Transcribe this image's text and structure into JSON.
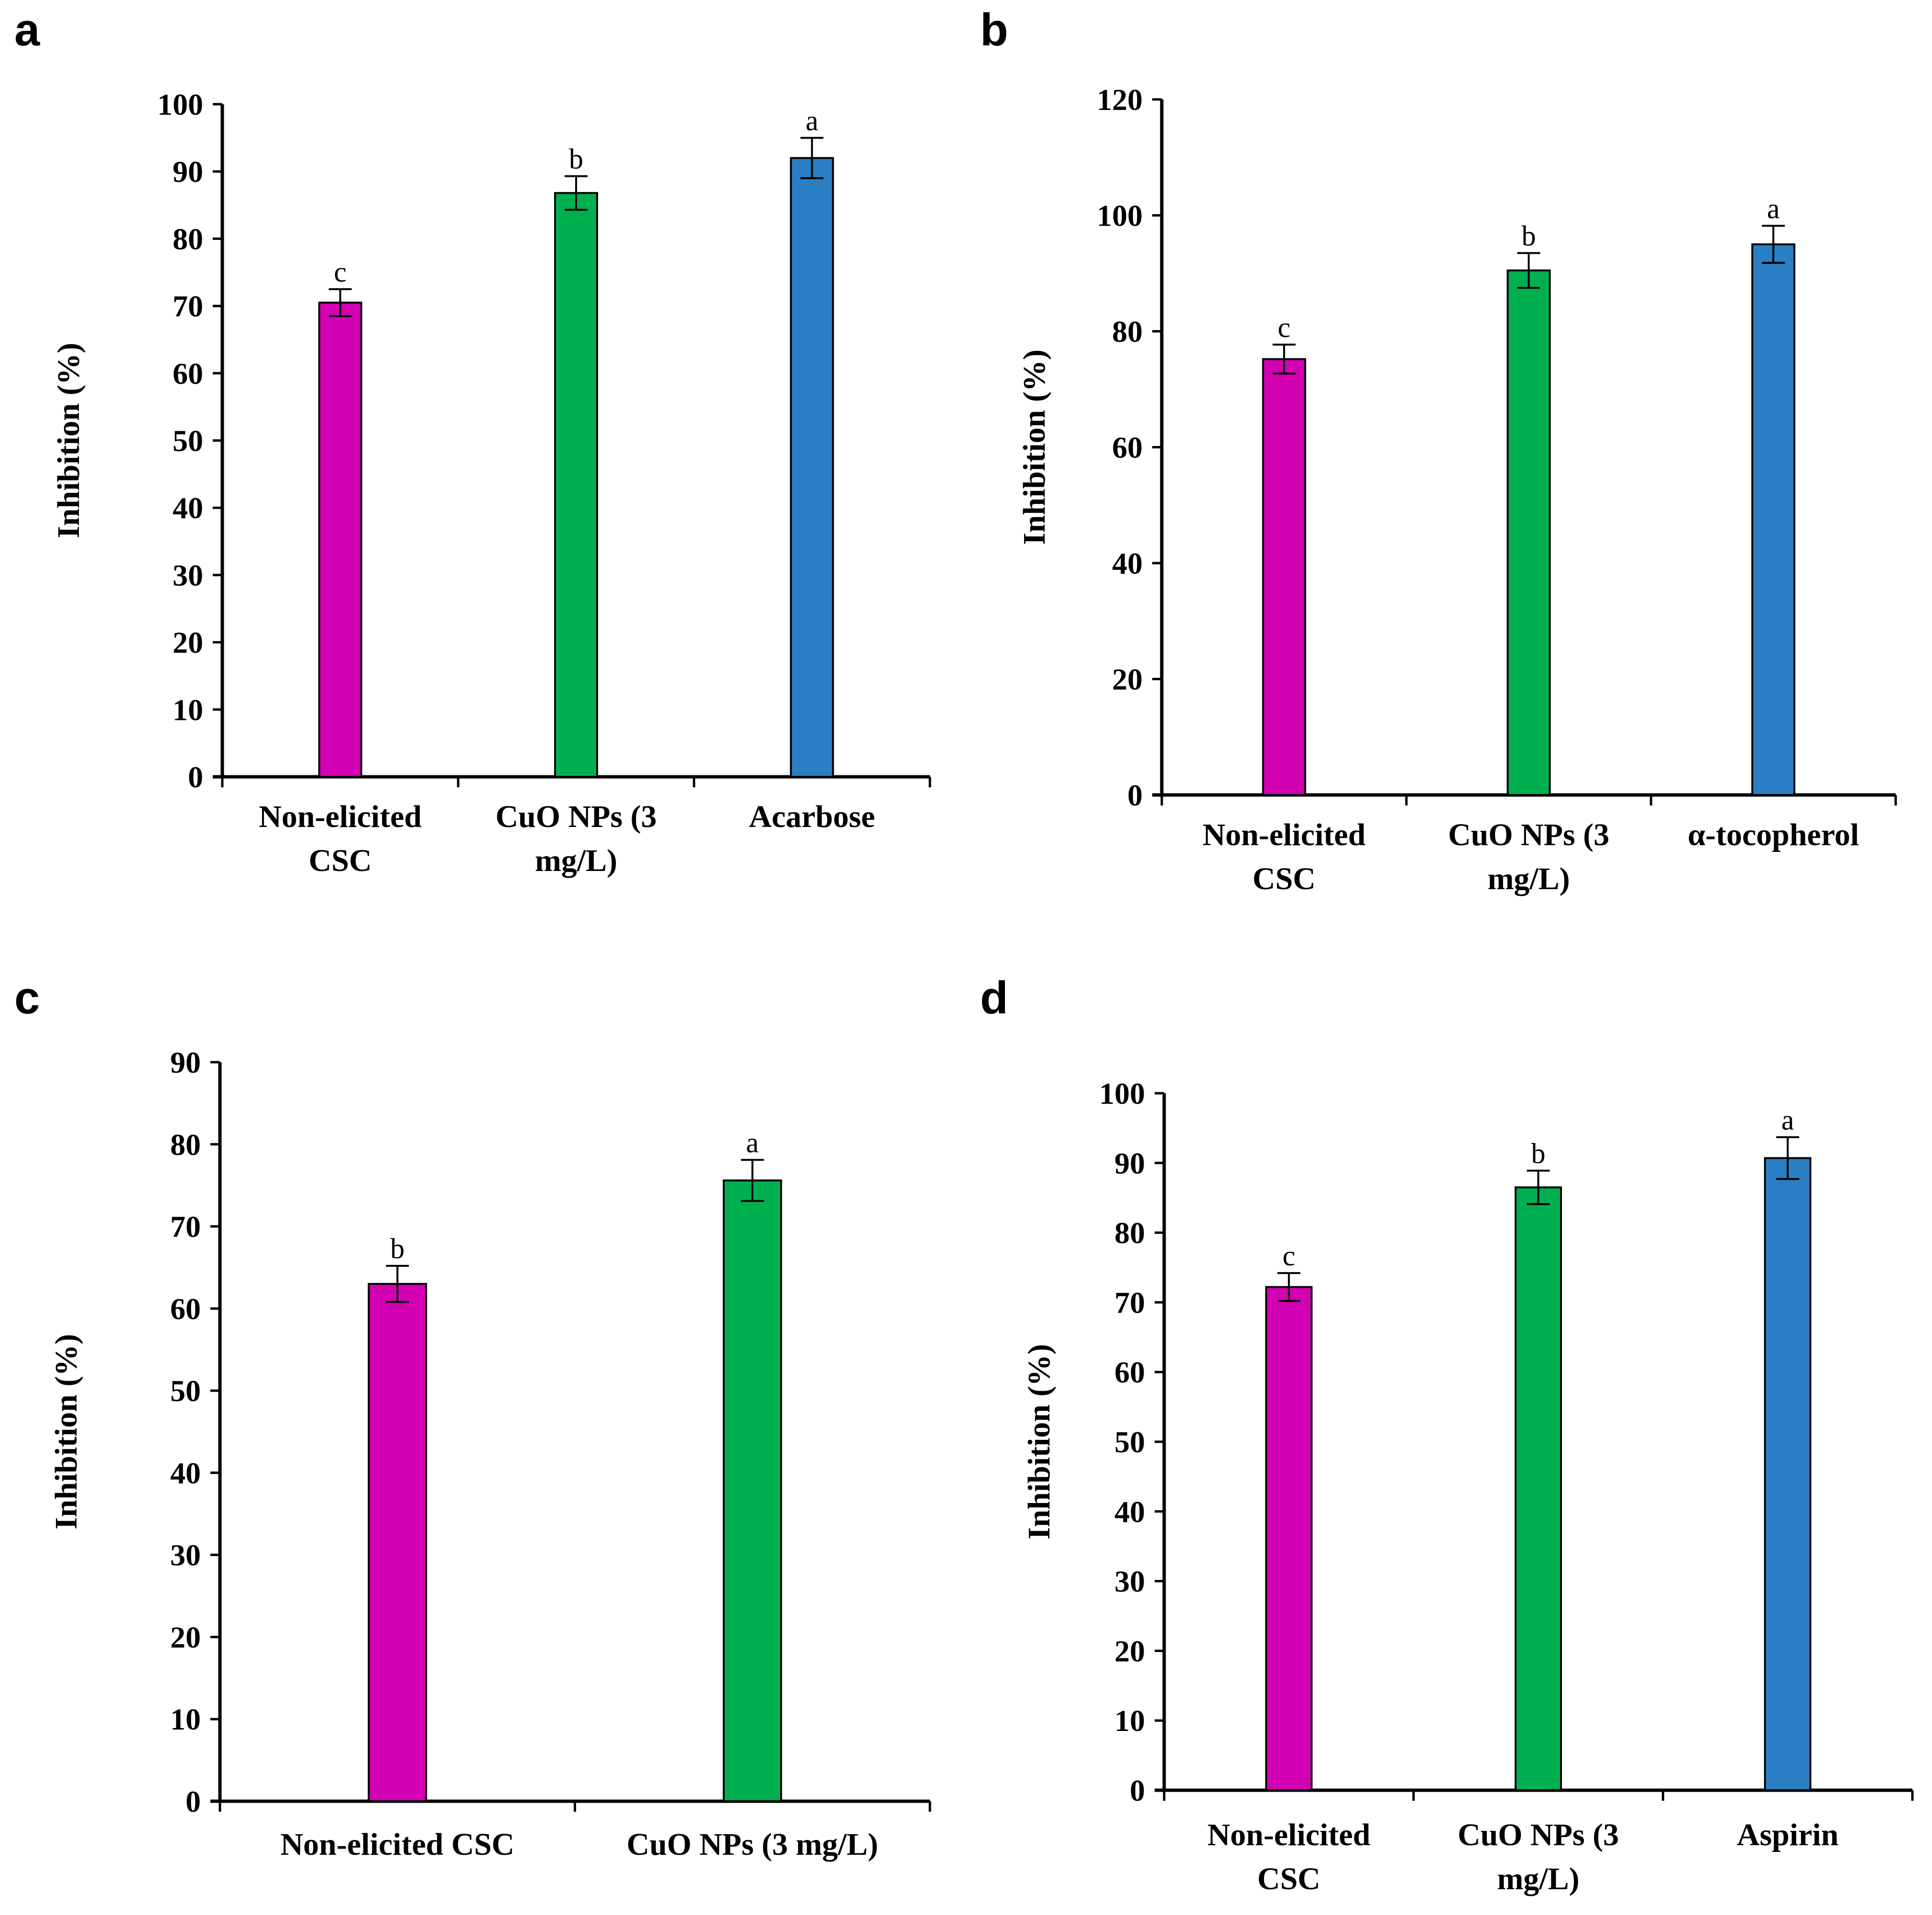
{
  "chart_data": [
    {
      "type": "bar",
      "panel_label": "a",
      "ylabel": "Inhibition (%)",
      "ylim": [
        0,
        100
      ],
      "yticks": [
        0,
        10,
        20,
        30,
        40,
        50,
        60,
        70,
        80,
        90,
        100
      ],
      "categories": [
        [
          "Non-elicited",
          "CSC"
        ],
        [
          "CuO NPs (3",
          "mg/L)"
        ],
        [
          "Acarbose"
        ]
      ],
      "values": [
        70.5,
        86.8,
        92.0
      ],
      "errors": [
        2.0,
        2.5,
        3.0
      ],
      "significance": [
        "c",
        "b",
        "a"
      ],
      "colors": [
        "#d400b4",
        "#00b050",
        "#2a7fc4"
      ]
    },
    {
      "type": "bar",
      "panel_label": "b",
      "ylabel": "Inhibition (%)",
      "ylim": [
        0,
        120
      ],
      "yticks": [
        0,
        20,
        40,
        60,
        80,
        100,
        120
      ],
      "categories": [
        [
          "Non-elicited",
          "CSC"
        ],
        [
          "CuO NPs (3",
          "mg/L)"
        ],
        [
          "α-tocopherol"
        ]
      ],
      "values": [
        75.2,
        90.5,
        95.0
      ],
      "errors": [
        2.5,
        3.0,
        3.2
      ],
      "significance": [
        "c",
        "b",
        "a"
      ],
      "colors": [
        "#d400b4",
        "#00b050",
        "#2a7fc4"
      ]
    },
    {
      "type": "bar",
      "panel_label": "c",
      "ylabel": "Inhibition (%)",
      "ylim": [
        0,
        90
      ],
      "yticks": [
        0,
        10,
        20,
        30,
        40,
        50,
        60,
        70,
        80,
        90
      ],
      "categories": [
        [
          "Non-elicited CSC"
        ],
        [
          "CuO NPs (3 mg/L)"
        ]
      ],
      "values": [
        63.0,
        75.6
      ],
      "errors": [
        2.2,
        2.5
      ],
      "significance": [
        "b",
        "a"
      ],
      "colors": [
        "#d400b4",
        "#00b050"
      ]
    },
    {
      "type": "bar",
      "panel_label": "d",
      "ylabel": "Inhibition (%)",
      "ylim": [
        0,
        100
      ],
      "yticks": [
        0,
        10,
        20,
        30,
        40,
        50,
        60,
        70,
        80,
        90,
        100
      ],
      "categories": [
        [
          "Non-elicited",
          "CSC"
        ],
        [
          "CuO NPs (3",
          "mg/L)"
        ],
        [
          "Aspirin"
        ]
      ],
      "values": [
        72.2,
        86.5,
        90.7
      ],
      "errors": [
        2.0,
        2.4,
        3.0
      ],
      "significance": [
        "c",
        "b",
        "a"
      ],
      "colors": [
        "#d400b4",
        "#00b050",
        "#2a7fc4"
      ]
    }
  ]
}
